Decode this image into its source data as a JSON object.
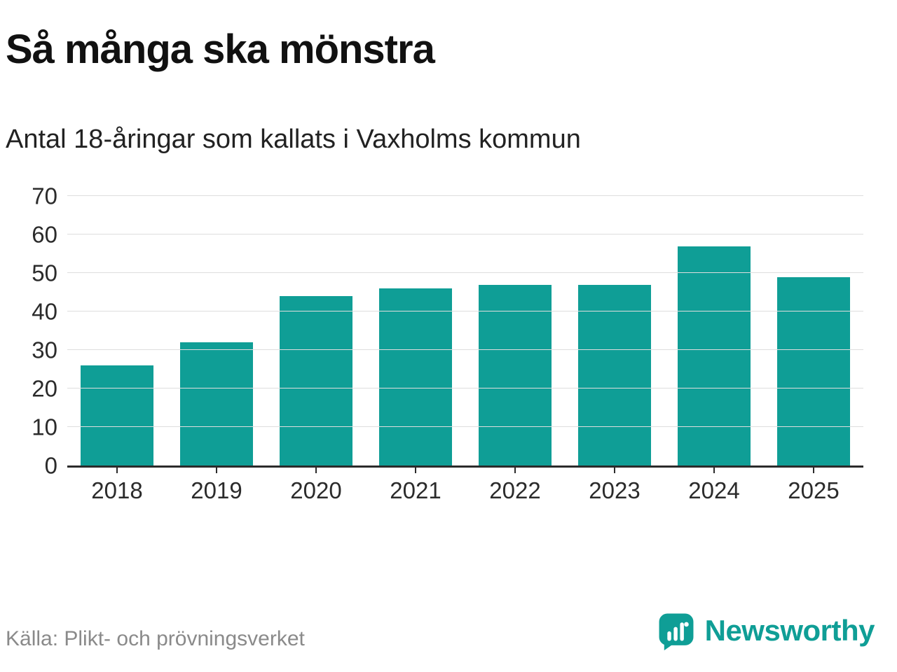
{
  "header": {
    "title": "Så många ska mönstra",
    "subtitle": "Antal 18-åringar som kallats i Vaxholms kommun"
  },
  "footer": {
    "source": "Källa: Plikt- och prövningsverket",
    "brand": "Newsworthy"
  },
  "colors": {
    "bar": "#0f9e96",
    "brand": "#0f9e96",
    "grid": "#dedede",
    "axis": "#2b2b2b",
    "title_text": "#111111",
    "muted_text": "#8a8a8a"
  },
  "chart_data": {
    "type": "bar",
    "title": "Så många ska mönstra",
    "subtitle": "Antal 18-åringar som kallats i Vaxholms kommun",
    "categories": [
      "2018",
      "2019",
      "2020",
      "2021",
      "2022",
      "2023",
      "2024",
      "2025"
    ],
    "values": [
      26,
      32,
      44,
      46,
      47,
      47,
      57,
      49
    ],
    "xlabel": "",
    "ylabel": "",
    "ylim": [
      0,
      70
    ],
    "yticks": [
      0,
      10,
      20,
      30,
      40,
      50,
      60,
      70
    ],
    "grid": true,
    "legend": "none",
    "bar_color": "#0f9e96",
    "source": "Källa: Plikt- och prövningsverket"
  }
}
